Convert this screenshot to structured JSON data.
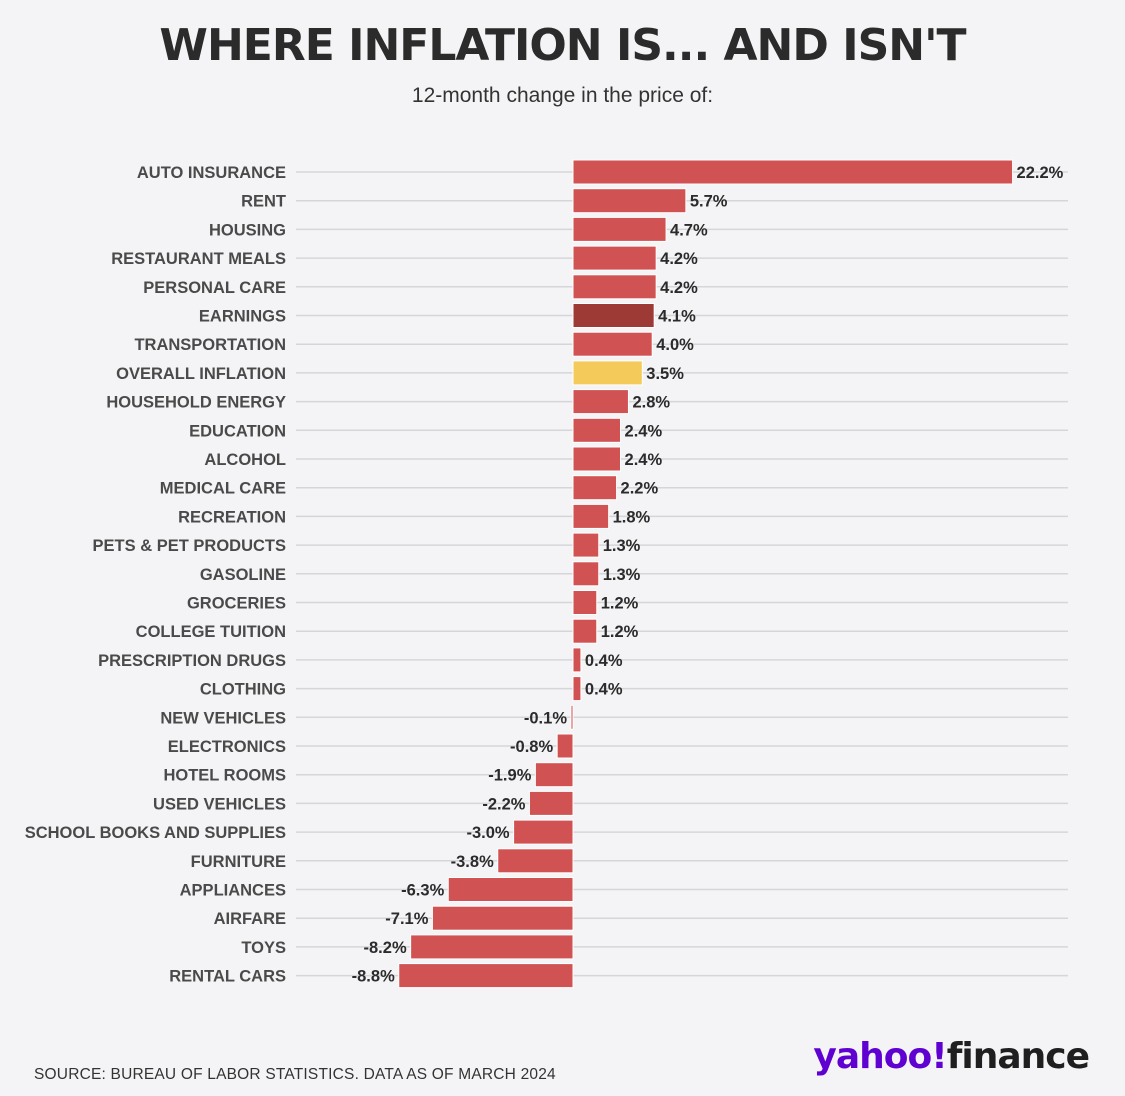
{
  "header": {
    "title": "WHERE INFLATION IS... AND ISN'T",
    "subtitle": "12-month change in the price of:"
  },
  "footer": {
    "source": "SOURCE: BUREAU OF LABOR STATISTICS. DATA AS OF MARCH 2024",
    "logo_yahoo": "yahoo!",
    "logo_finance": "finance"
  },
  "colors": {
    "default_bar": "#d05252",
    "earnings_bar": "#9e3a35",
    "overall_inflation_bar": "#f4cb5a",
    "gridline": "#d6d6da",
    "logo_purple": "#5f01d1"
  },
  "chart_data": {
    "type": "bar",
    "orientation": "horizontal",
    "title": "WHERE INFLATION IS... AND ISN'T",
    "subtitle": "12-month change in the price of:",
    "unit": "%",
    "xlim": [
      -8.8,
      22.2
    ],
    "grid": true,
    "categories": [
      "AUTO INSURANCE",
      "RENT",
      "HOUSING",
      "RESTAURANT MEALS",
      "PERSONAL CARE",
      "EARNINGS",
      "TRANSPORTATION",
      "OVERALL INFLATION",
      "HOUSEHOLD ENERGY",
      "EDUCATION",
      "ALCOHOL",
      "MEDICAL CARE",
      "RECREATION",
      "PETS & PET PRODUCTS",
      "GASOLINE",
      "GROCERIES",
      "COLLEGE TUITION",
      "PRESCRIPTION DRUGS",
      "CLOTHING",
      "NEW VEHICLES",
      "ELECTRONICS",
      "HOTEL ROOMS",
      "USED VEHICLES",
      "SCHOOL BOOKS AND SUPPLIES",
      "FURNITURE",
      "APPLIANCES",
      "AIRFARE",
      "TOYS",
      "RENTAL CARS"
    ],
    "values": [
      22.2,
      5.7,
      4.7,
      4.2,
      4.2,
      4.1,
      4.0,
      3.5,
      2.8,
      2.4,
      2.4,
      2.2,
      1.8,
      1.3,
      1.3,
      1.2,
      1.2,
      0.4,
      0.4,
      -0.1,
      -0.8,
      -1.9,
      -2.2,
      -3.0,
      -3.8,
      -6.3,
      -7.1,
      -8.2,
      -8.8
    ],
    "value_labels": [
      "22.2%",
      "5.7%",
      "4.7%",
      "4.2%",
      "4.2%",
      "4.1%",
      "4.0%",
      "3.5%",
      "2.8%",
      "2.4%",
      "2.4%",
      "2.2%",
      "1.8%",
      "1.3%",
      "1.3%",
      "1.2%",
      "1.2%",
      "0.4%",
      "0.4%",
      "-0.1%",
      "-0.8%",
      "-1.9%",
      "-2.2%",
      "-3.0%",
      "-3.8%",
      "-6.3%",
      "-7.1%",
      "-8.2%",
      "-8.8%"
    ],
    "highlight": {
      "EARNINGS": "#9e3a35",
      "OVERALL INFLATION": "#f4cb5a"
    }
  }
}
